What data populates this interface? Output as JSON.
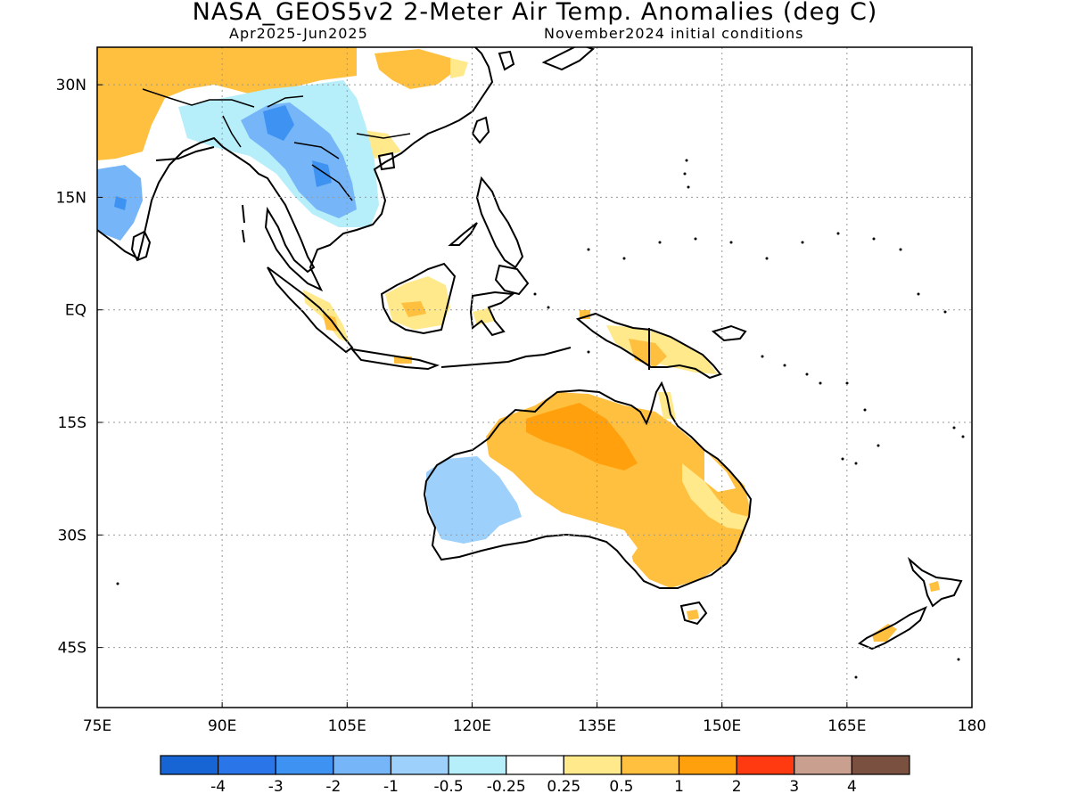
{
  "title": "NASA_GEOS5v2 2-Meter Air Temp. Anomalies (deg C)",
  "subtitle_left": "Apr2025-Jun2025",
  "subtitle_right": "November2024 initial conditions",
  "map": {
    "lon_range": [
      75,
      180
    ],
    "lat_range": [
      -53,
      35
    ],
    "lon_ticks": [
      {
        "lon": 75,
        "label": "75E"
      },
      {
        "lon": 90,
        "label": "90E"
      },
      {
        "lon": 105,
        "label": "105E"
      },
      {
        "lon": 120,
        "label": "120E"
      },
      {
        "lon": 135,
        "label": "135E"
      },
      {
        "lon": 150,
        "label": "150E"
      },
      {
        "lon": 165,
        "label": "165E"
      },
      {
        "lon": 180,
        "label": "180"
      }
    ],
    "lat_ticks": [
      {
        "lat": 30,
        "label": "30N"
      },
      {
        "lat": 15,
        "label": "15N"
      },
      {
        "lat": 0,
        "label": "EQ"
      },
      {
        "lat": -15,
        "label": "15S"
      },
      {
        "lat": -30,
        "label": "30S"
      },
      {
        "lat": -45,
        "label": "45S"
      }
    ],
    "grid": "dotted"
  },
  "colorbar": {
    "colors": [
      "#1764d4",
      "#2a76e8",
      "#3e93f2",
      "#76b6f8",
      "#9dd0fb",
      "#b6eefa",
      "#ffffff",
      "#ffe98a",
      "#ffc040",
      "#ffa00c",
      "#ff3a10",
      "#c9a090",
      "#7a5040"
    ],
    "labels": [
      "-4",
      "-3",
      "-2",
      "-1",
      "-0.5",
      "-0.25",
      "0.25",
      "0.5",
      "1",
      "2",
      "3",
      "4"
    ]
  },
  "regions": [
    {
      "name": "australia",
      "land": true
    },
    {
      "name": "india-tibet",
      "land": true
    },
    {
      "name": "mainland-southeast-asia",
      "land": true
    },
    {
      "name": "china",
      "land": true
    },
    {
      "name": "new-zealand",
      "land": true
    },
    {
      "name": "new-guinea",
      "land": true
    },
    {
      "name": "borneo",
      "land": true
    },
    {
      "name": "sumatra",
      "land": true
    },
    {
      "name": "java",
      "land": true
    },
    {
      "name": "sulawesi",
      "land": true
    },
    {
      "name": "philippines",
      "land": true
    },
    {
      "name": "taiwan",
      "land": true
    },
    {
      "name": "japan",
      "land": true
    },
    {
      "name": "sri-lanka",
      "land": true
    },
    {
      "name": "tasmania",
      "land": true
    },
    {
      "name": "hainan",
      "land": true
    }
  ]
}
